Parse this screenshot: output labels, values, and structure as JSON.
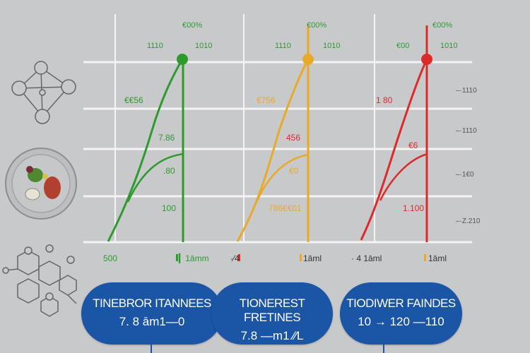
{
  "colors": {
    "green": "#2e9a2e",
    "yellow": "#e9a92a",
    "red": "#dc2a2a",
    "blue": "#1a55a6",
    "grid": "#f4f4f4",
    "background": "#c8c9cb"
  },
  "icons": [
    "molecule-icon",
    "food-plate-icon",
    "hex-molecule-icon"
  ],
  "chart_data": {
    "type": "line",
    "grid": true,
    "panels": [
      {
        "color": "#2e9a2e",
        "top_labels": [
          "€00%",
          "1110",
          "1010"
        ],
        "labels": [
          "€€56",
          "7.86",
          ".80",
          "100"
        ],
        "x_labels": [
          "500",
          "▎1āmm"
        ]
      },
      {
        "color": "#e9a92a",
        "top_labels": [
          "€00%",
          "1110",
          "1010"
        ],
        "labels": [
          "€756",
          "456",
          "€0",
          "786€€01"
        ],
        "x_labels": [
          "·⁄4",
          "1āml"
        ]
      },
      {
        "color": "#dc2a2a",
        "top_labels": [
          "€00%",
          "€00",
          "1010"
        ],
        "labels": [
          "1 80",
          "€6",
          "1.100"
        ],
        "x_labels": [
          "· 4 1āml",
          "1āml"
        ]
      }
    ],
    "right_axis": [
      "–·1110",
      "–·1110",
      "–·1€0",
      "–·Z.210"
    ]
  },
  "cards": [
    {
      "title": "TINEBROR ITANNEES",
      "value": "7. 8 ām1—0"
    },
    {
      "title": "TIONEREST FRETINES",
      "value": "7.8 —m1 ⁄⁄L"
    },
    {
      "title": "TIODIWER FAINDES",
      "value": "10 → 120 —110"
    }
  ]
}
